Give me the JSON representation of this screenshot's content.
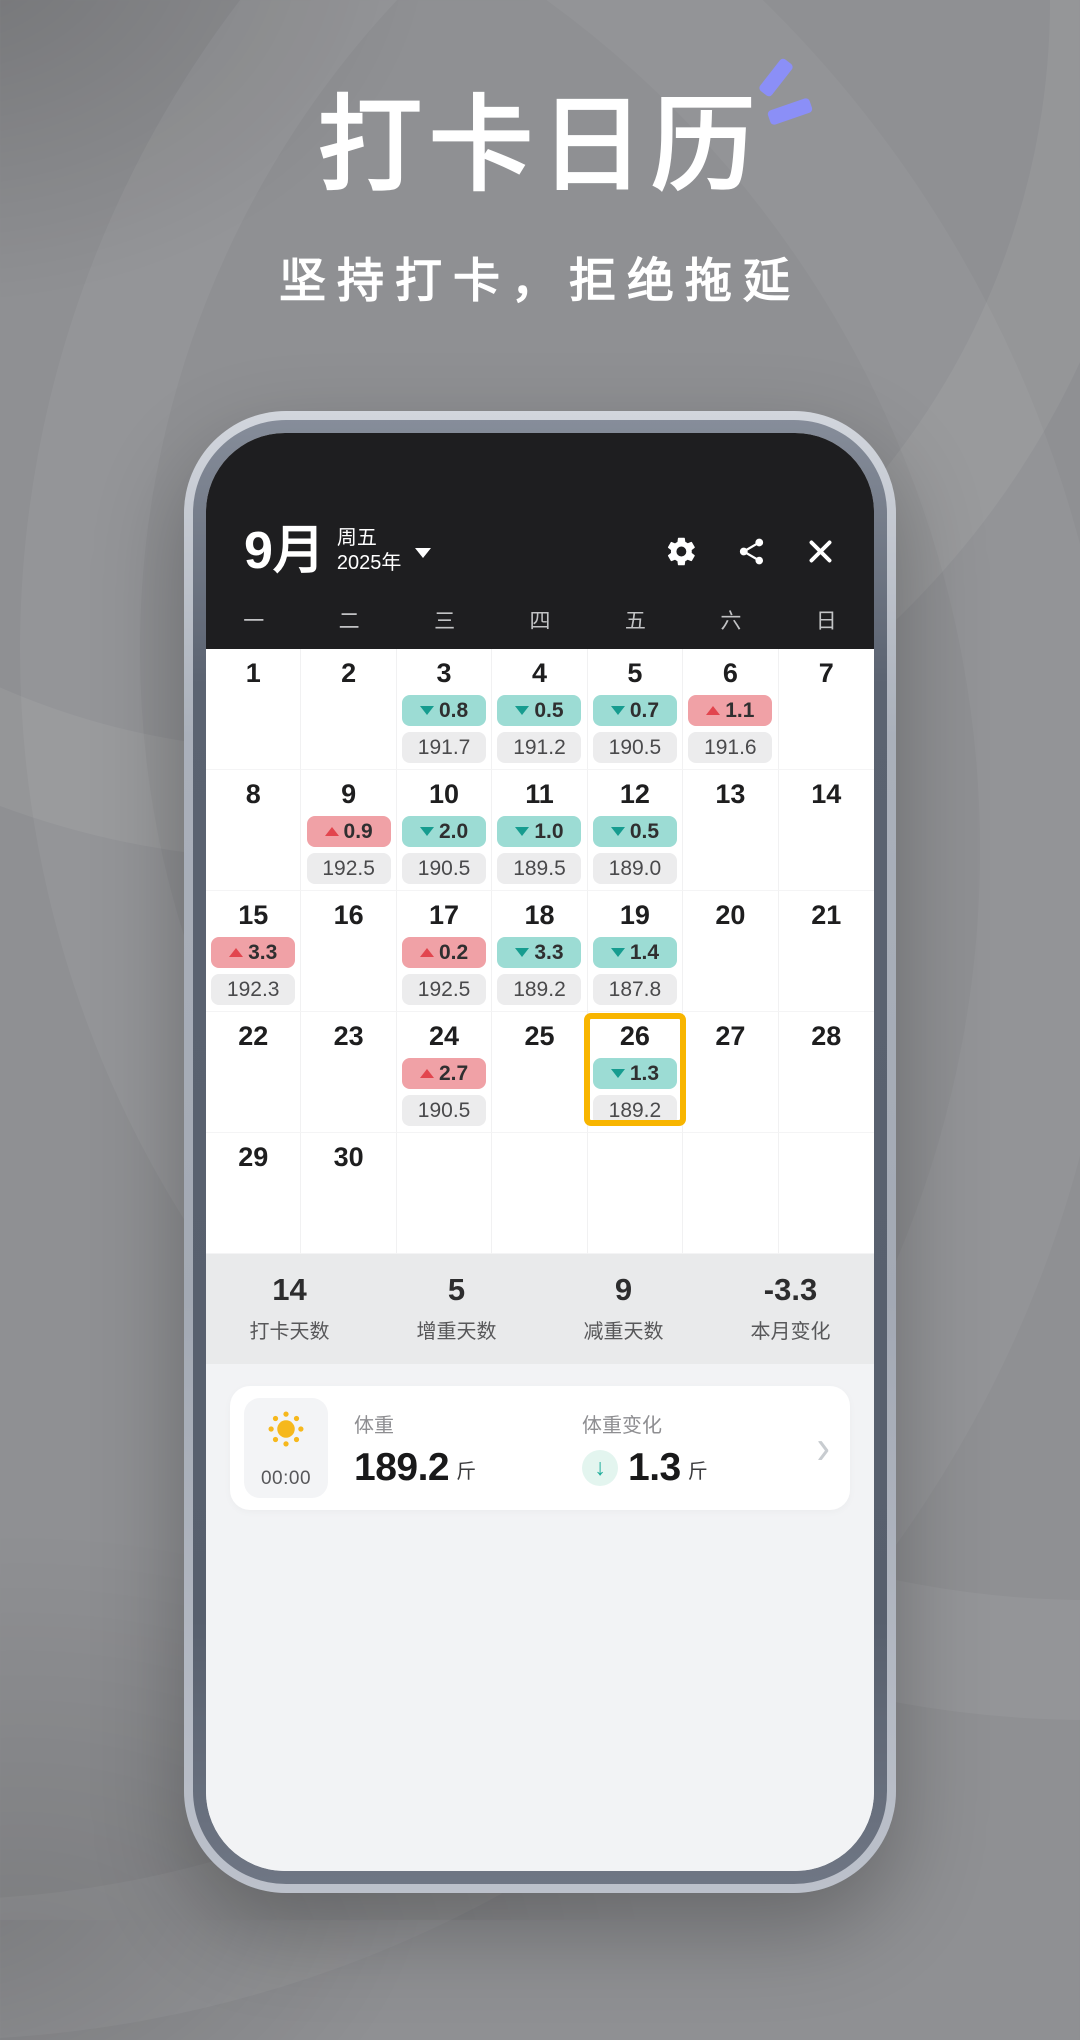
{
  "hero": {
    "title": "打卡日历",
    "subtitle": "坚持打卡，拒绝拖延"
  },
  "phone": {
    "header": {
      "month": "9月",
      "weekday": "周五",
      "year": "2025年",
      "icons": [
        "settings-icon",
        "share-icon",
        "close-icon"
      ]
    },
    "weekdays": [
      "一",
      "二",
      "三",
      "四",
      "五",
      "六",
      "日"
    ],
    "calendar": {
      "cells": [
        {
          "day": "1"
        },
        {
          "day": "2"
        },
        {
          "day": "3",
          "dir": "down",
          "change": "0.8",
          "weight": "191.7"
        },
        {
          "day": "4",
          "dir": "down",
          "change": "0.5",
          "weight": "191.2"
        },
        {
          "day": "5",
          "dir": "down",
          "change": "0.7",
          "weight": "190.5"
        },
        {
          "day": "6",
          "dir": "up",
          "change": "1.1",
          "weight": "191.6"
        },
        {
          "day": "7"
        },
        {
          "day": "8"
        },
        {
          "day": "9",
          "dir": "up",
          "change": "0.9",
          "weight": "192.5"
        },
        {
          "day": "10",
          "dir": "down",
          "change": "2.0",
          "weight": "190.5"
        },
        {
          "day": "11",
          "dir": "down",
          "change": "1.0",
          "weight": "189.5"
        },
        {
          "day": "12",
          "dir": "down",
          "change": "0.5",
          "weight": "189.0"
        },
        {
          "day": "13"
        },
        {
          "day": "14"
        },
        {
          "day": "15",
          "dir": "up",
          "change": "3.3",
          "weight": "192.3"
        },
        {
          "day": "16"
        },
        {
          "day": "17",
          "dir": "up",
          "change": "0.2",
          "weight": "192.5"
        },
        {
          "day": "18",
          "dir": "down",
          "change": "3.3",
          "weight": "189.2"
        },
        {
          "day": "19",
          "dir": "down",
          "change": "1.4",
          "weight": "187.8"
        },
        {
          "day": "20"
        },
        {
          "day": "21"
        },
        {
          "day": "22"
        },
        {
          "day": "23"
        },
        {
          "day": "24",
          "dir": "up",
          "change": "2.7",
          "weight": "190.5"
        },
        {
          "day": "25"
        },
        {
          "day": "26",
          "dir": "down",
          "change": "1.3",
          "weight": "189.2",
          "selected": true
        },
        {
          "day": "27"
        },
        {
          "day": "28"
        },
        {
          "day": "29"
        },
        {
          "day": "30"
        },
        {},
        {},
        {},
        {},
        {}
      ]
    },
    "stats": [
      {
        "value": "14",
        "label": "打卡天数"
      },
      {
        "value": "5",
        "label": "增重天数"
      },
      {
        "value": "9",
        "label": "减重天数"
      },
      {
        "value": "-3.3",
        "label": "本月变化"
      }
    ],
    "card": {
      "time": "00:00",
      "weight_label": "体重",
      "weight_value": "189.2",
      "weight_unit": "斤",
      "change_label": "体重变化",
      "change_value": "1.3",
      "change_unit": "斤",
      "down_arrow_glyph": "↓",
      "chevron_glyph": "›"
    }
  },
  "colors": {
    "accent-gold": "#F8B500",
    "teal-badge": "#9CDCD4",
    "teal-arrow": "#169C8F",
    "pink-badge": "#F0A1A6",
    "red-arrow": "#E2454E",
    "header-bg": "#1E1E20",
    "purple-accent": "#8B8FF7",
    "sun-yellow": "#F6B81C",
    "teal-down": "#21AE9C"
  }
}
